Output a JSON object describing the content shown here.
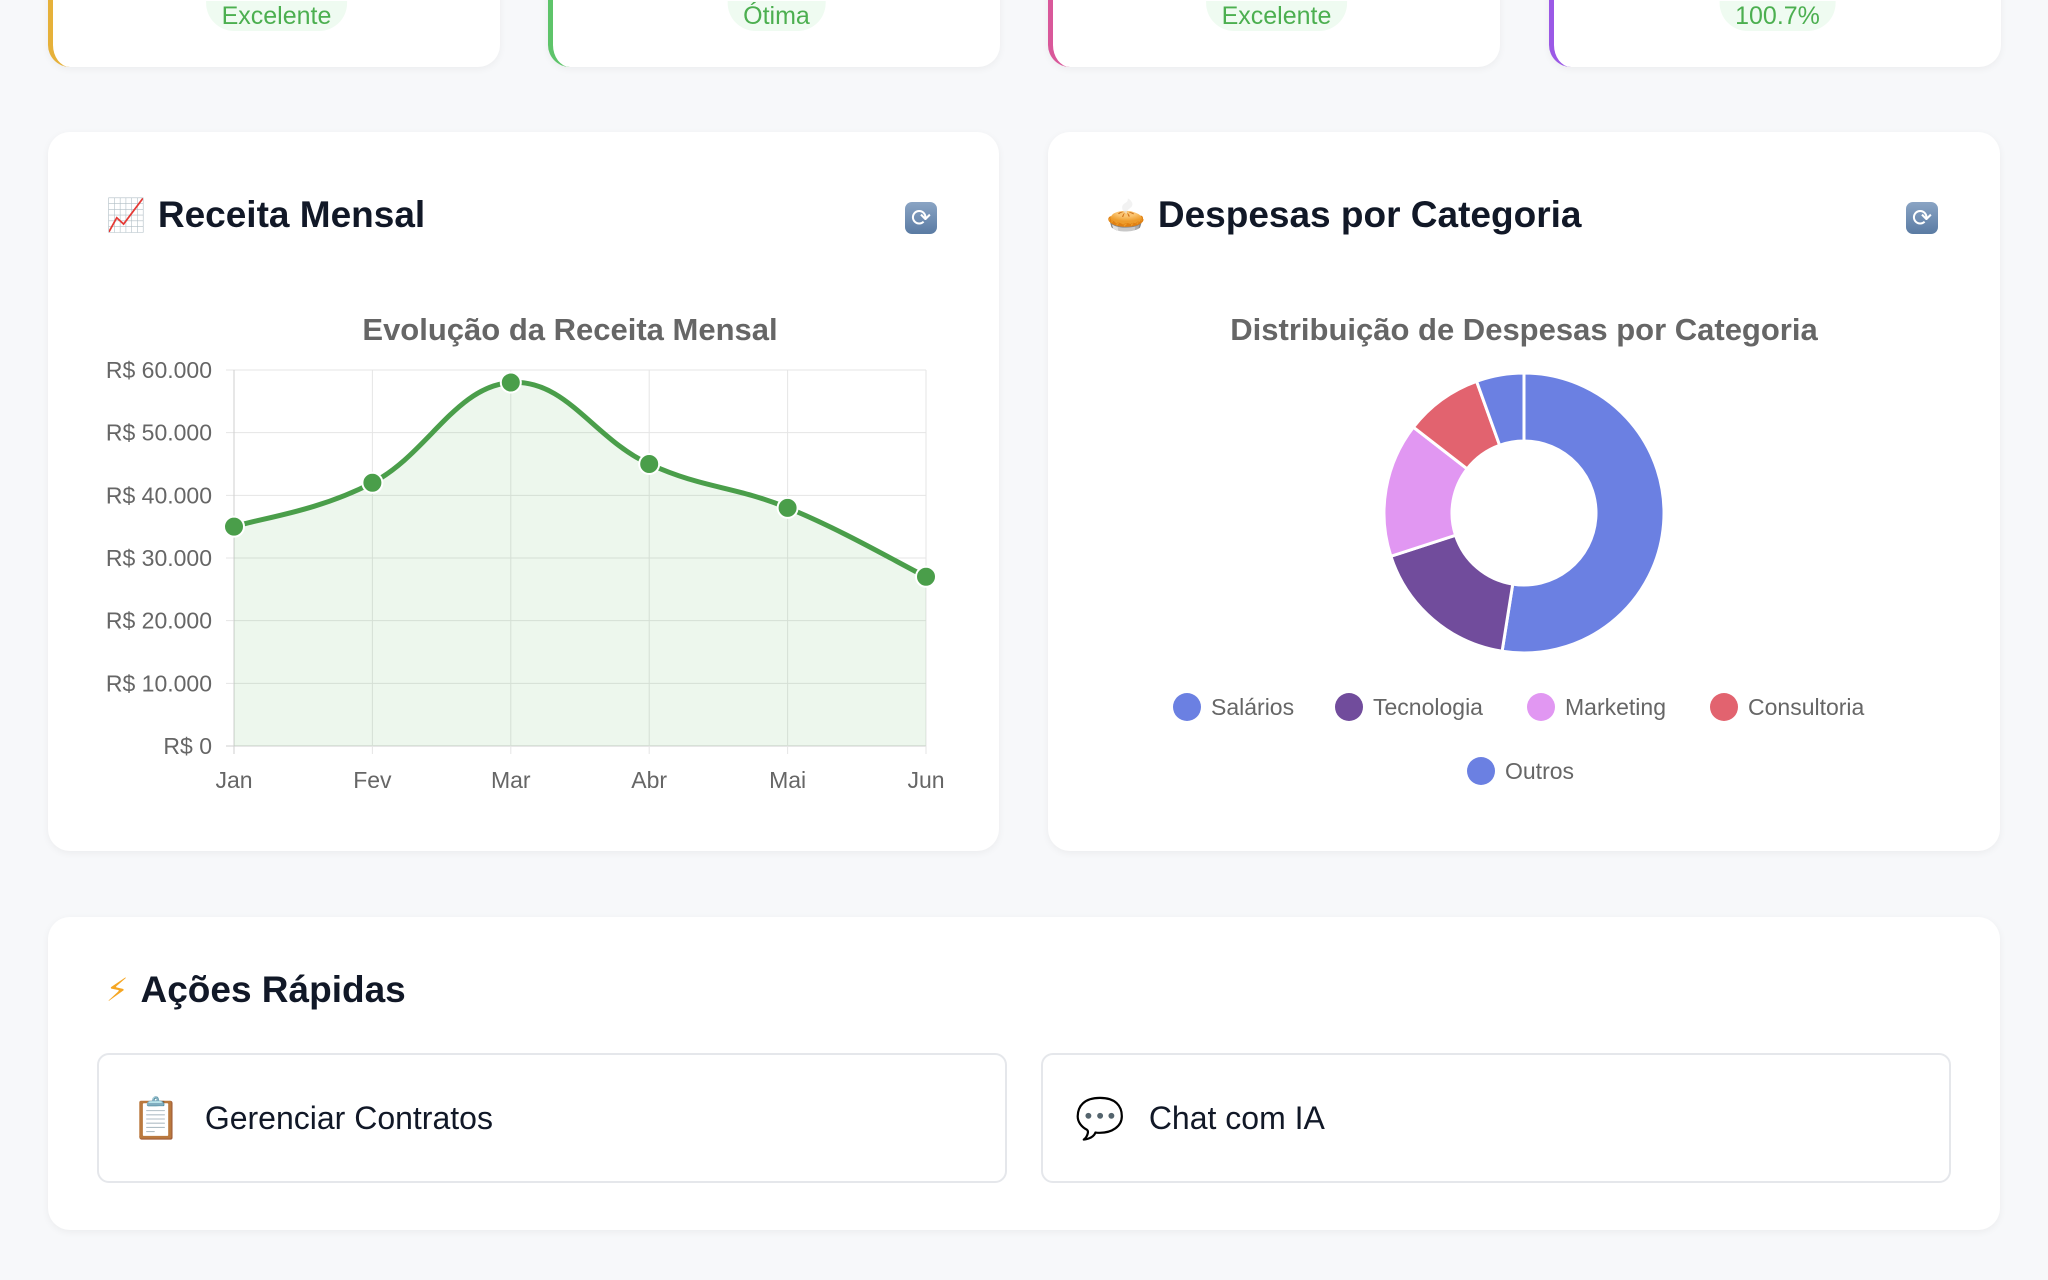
{
  "stat_cards": [
    {
      "badge": "Excelente",
      "color": "#e6b13a"
    },
    {
      "badge": "Ótima",
      "color": "#5ec46a"
    },
    {
      "badge": "Excelente",
      "color": "#d9589a"
    },
    {
      "badge": "100.7%",
      "color": "#9b59e6"
    }
  ],
  "revenue": {
    "icon": "chart-increasing-icon",
    "title": "Receita Mensal",
    "refresh_icon": "refresh-icon"
  },
  "expenses": {
    "icon": "pie-icon",
    "title": "Despesas por Categoria",
    "refresh_icon": "refresh-icon"
  },
  "quick_actions": {
    "title": "Ações Rápidas",
    "items": [
      {
        "icon": "clipboard-icon",
        "label": "Gerenciar Contratos"
      },
      {
        "icon": "speech-bubble-icon",
        "label": "Chat com IA"
      }
    ]
  },
  "chart_data": [
    {
      "type": "line",
      "title": "Evolução da Receita Mensal",
      "categories": [
        "Jan",
        "Fev",
        "Mar",
        "Abr",
        "Mai",
        "Jun"
      ],
      "series": [
        {
          "name": "Receita",
          "values": [
            35000,
            42000,
            58000,
            45000,
            38000,
            27000
          ],
          "color": "#4a9e4a"
        }
      ],
      "ylim": [
        0,
        60000
      ],
      "yticks": [
        "R$ 0",
        "R$ 10.000",
        "R$ 20.000",
        "R$ 30.000",
        "R$ 40.000",
        "R$ 50.000",
        "R$ 60.000"
      ],
      "grid": true
    },
    {
      "type": "pie",
      "title": "Distribuição de Despesas por Categoria",
      "labels": [
        "Salários",
        "Tecnologia",
        "Marketing",
        "Consultoria",
        "Outros"
      ],
      "values": [
        52.5,
        17.5,
        15.5,
        9,
        5.5
      ],
      "colors": [
        "#6b80e2",
        "#714c9c",
        "#e197f2",
        "#e2636f",
        "#6b80e2"
      ],
      "legend": "bottom"
    }
  ]
}
